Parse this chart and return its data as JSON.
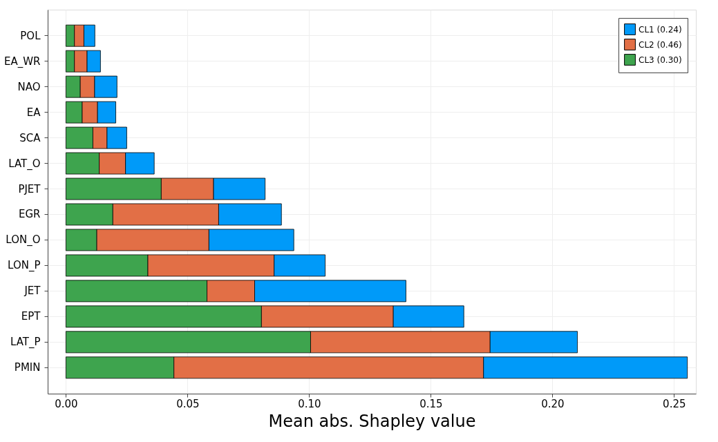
{
  "chart_data": {
    "type": "bar",
    "orientation": "horizontal",
    "stacked": true,
    "xlabel": "Mean abs. Shapley value",
    "categories": [
      "POL",
      "EA_WR",
      "NAO",
      "EA",
      "SCA",
      "LAT_O",
      "PJET",
      "EGR",
      "LON_O",
      "LON_P",
      "JET",
      "EPT",
      "LAT_P",
      "PMIN"
    ],
    "series": [
      {
        "name": "CL3 (0.30)",
        "color": "#3ea44e",
        "values": [
          0.0035,
          0.0035,
          0.0059,
          0.0067,
          0.0111,
          0.0137,
          0.0392,
          0.0193,
          0.0127,
          0.0337,
          0.058,
          0.0804,
          0.1006,
          0.0444
        ]
      },
      {
        "name": "CL2 (0.46)",
        "color": "#e26f46",
        "values": [
          0.0039,
          0.0052,
          0.0059,
          0.0063,
          0.0058,
          0.0108,
          0.0215,
          0.0435,
          0.0461,
          0.0519,
          0.0196,
          0.0542,
          0.0738,
          0.1273
        ]
      },
      {
        "name": "CL1 (0.24)",
        "color": "#009af9",
        "values": [
          0.0045,
          0.0055,
          0.0092,
          0.0075,
          0.0081,
          0.0118,
          0.0212,
          0.0258,
          0.0349,
          0.021,
          0.0622,
          0.029,
          0.0359,
          0.0838
        ]
      }
    ],
    "xlim": [
      -0.0075,
      0.259
    ],
    "xticks": [
      {
        "value": 0,
        "label": "0.00"
      },
      0.05,
      {
        "value": 0.1,
        "label": "0.10"
      },
      0.15,
      {
        "value": 0.2,
        "label": "0.20"
      },
      0.25
    ],
    "grid": true,
    "legend": "top right"
  }
}
